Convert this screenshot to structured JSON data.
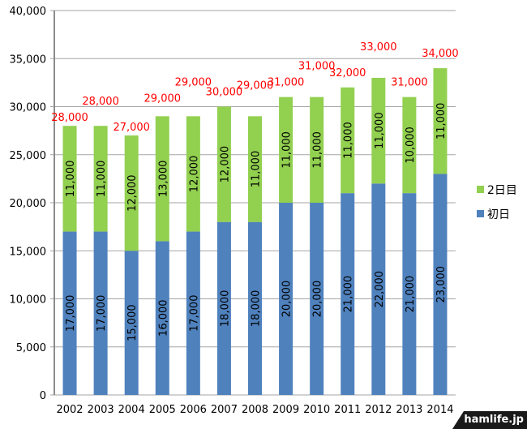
{
  "chart_data": {
    "type": "bar",
    "stacked": true,
    "title": "",
    "xlabel": "",
    "ylabel": "",
    "ylim": [
      0,
      40000
    ],
    "yticks": [
      "0",
      "5,000",
      "10,000",
      "15,000",
      "20,000",
      "25,000",
      "30,000",
      "35,000",
      "40,000"
    ],
    "grid": true,
    "legend_position": "right",
    "categories": [
      "2002",
      "2003",
      "2004",
      "2005",
      "2006",
      "2007",
      "2008",
      "2009",
      "2010",
      "2011",
      "2012",
      "2013",
      "2014"
    ],
    "series": [
      {
        "name": "初日",
        "color": "#4f81bd",
        "values": [
          17000,
          17000,
          15000,
          16000,
          17000,
          18000,
          18000,
          20000,
          20000,
          21000,
          22000,
          21000,
          23000
        ],
        "labels": [
          "17,000",
          "17,000",
          "15,000",
          "16,000",
          "17,000",
          "18,000",
          "18,000",
          "20,000",
          "20,000",
          "21,000",
          "22,000",
          "21,000",
          "23,000"
        ]
      },
      {
        "name": "2日目",
        "color": "#92d050",
        "values": [
          11000,
          11000,
          12000,
          13000,
          12000,
          12000,
          11000,
          11000,
          11000,
          11000,
          11000,
          10000,
          11000
        ],
        "labels": [
          "11,000",
          "11,000",
          "12,000",
          "13,000",
          "12,000",
          "12,000",
          "11,000",
          "11,000",
          "11,000",
          "11,000",
          "11,000",
          "10,000",
          "11,000"
        ]
      }
    ],
    "totals": [
      28000,
      28000,
      27000,
      29000,
      29000,
      30000,
      29000,
      31000,
      31000,
      32000,
      33000,
      31000,
      34000
    ],
    "total_labels": [
      "28,000",
      "28,000",
      "27,000",
      "29,000",
      "29,000",
      "30,000",
      "29,000",
      "31,000",
      "31,000",
      "32,000",
      "33,000",
      "31,000",
      "34,000"
    ],
    "total_label_color": "#ff0000"
  },
  "watermark": "hamlife.jp"
}
